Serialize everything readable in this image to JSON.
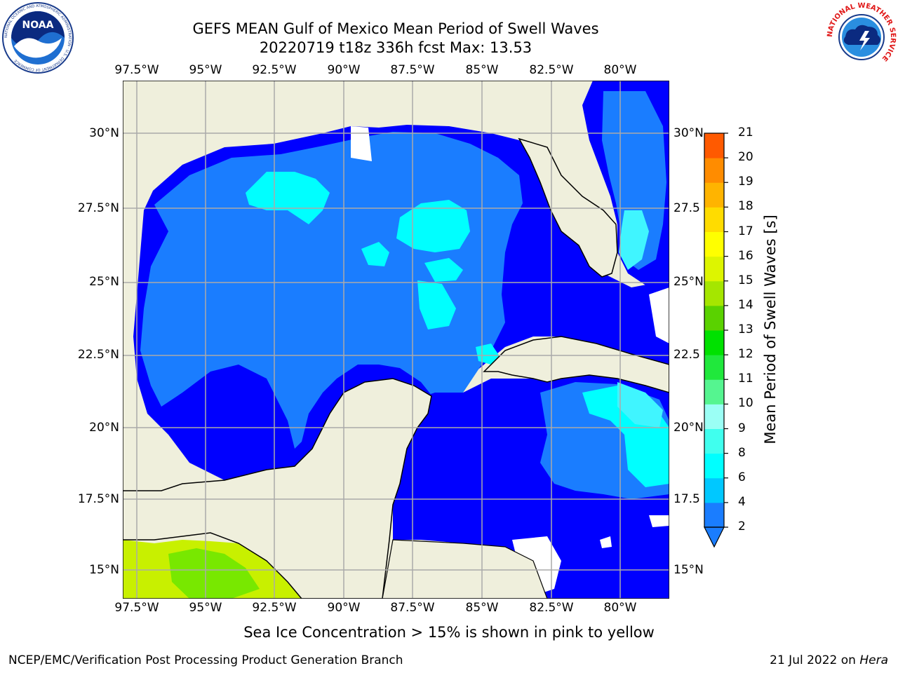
{
  "header": {
    "title_line1": "GEFS MEAN Gulf of Mexico Mean Period of Swell Waves",
    "title_line2": "20220719 t18z 336h fcst   Max: 13.53",
    "noaa_logo_text": "NOAA",
    "noaa_ring_text": "NATIONAL OCEANIC AND ATMOSPHERIC ADMINISTRATION · U.S. DEPARTMENT OF COMMERCE",
    "nws_ring_text": "NATIONAL WEATHER SERVICE"
  },
  "map": {
    "lon_labels": [
      "97.5°W",
      "95°W",
      "92.5°W",
      "90°W",
      "87.5°W",
      "85°W",
      "82.5°W",
      "80°W"
    ],
    "lat_labels_left": [
      "30°N",
      "27.5°N",
      "25°N",
      "22.5°N",
      "20°N",
      "17.5°N",
      "15°N"
    ],
    "lat_labels_right": [
      "30°N",
      "27.5",
      "25°N",
      "22.5",
      "20°N",
      "17.5",
      "15°N"
    ],
    "colors": {
      "land": "#efefdc",
      "ocean_dark": "#0000ff",
      "ocean_mid": "#1a7dff",
      "cyan": "#00ffff",
      "lightcyan": "#40f5ff",
      "yellow_green": "#c8f000",
      "green": "#78e800",
      "grid": "#aaaaaa"
    }
  },
  "colorbar": {
    "label": "Mean Period of Swell Waves [s]",
    "ticks": [
      "2",
      "4",
      "6",
      "8",
      "9",
      "10",
      "11",
      "12",
      "13",
      "14",
      "15",
      "16",
      "17",
      "18",
      "19",
      "20",
      "21"
    ],
    "colors": [
      "#1a7dff",
      "#00c8ff",
      "#00ffff",
      "#40ffee",
      "#9bfff5",
      "#55f590",
      "#20e83c",
      "#00e100",
      "#5ad200",
      "#a5e600",
      "#ddf500",
      "#ffff00",
      "#ffdc00",
      "#ffb400",
      "#ff8c00",
      "#ff5a00",
      "#ff2800",
      "#ff0000"
    ]
  },
  "footer": {
    "caption": "Sea Ice Concentration > 15% is shown in pink to yellow",
    "left": "NCEP/EMC/Verification Post Processing Product Generation Branch",
    "date": "21 Jul 2022 on ",
    "host": "Hera"
  }
}
